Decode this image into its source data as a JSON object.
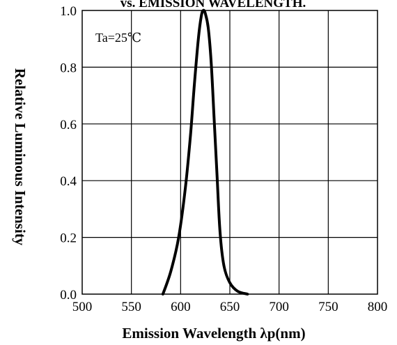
{
  "chart_data": {
    "type": "line",
    "title": "vs. EMISSION WAVELENGTH.",
    "xlabel": "Emission Wavelength  λp(nm)",
    "ylabel": "Relative Luminous Intensity",
    "annotation": "Ta=25℃",
    "xlim": [
      500,
      800
    ],
    "ylim": [
      0,
      1.0
    ],
    "x_ticks": [
      "500",
      "550",
      "600",
      "650",
      "700",
      "750",
      "800"
    ],
    "y_ticks": [
      "0.0",
      "0.2",
      "0.4",
      "0.6",
      "0.8",
      "1.0"
    ],
    "grid": true,
    "series": [
      {
        "x": [
          582,
          590,
          598,
          605,
          610,
          614,
          618,
          621,
          623,
          625,
          628,
          631,
          634,
          637,
          640,
          644,
          650,
          658,
          668
        ],
        "y": [
          0.0,
          0.08,
          0.2,
          0.38,
          0.56,
          0.74,
          0.9,
          0.98,
          1.0,
          0.99,
          0.94,
          0.82,
          0.62,
          0.42,
          0.22,
          0.1,
          0.04,
          0.01,
          0.0
        ]
      }
    ]
  }
}
